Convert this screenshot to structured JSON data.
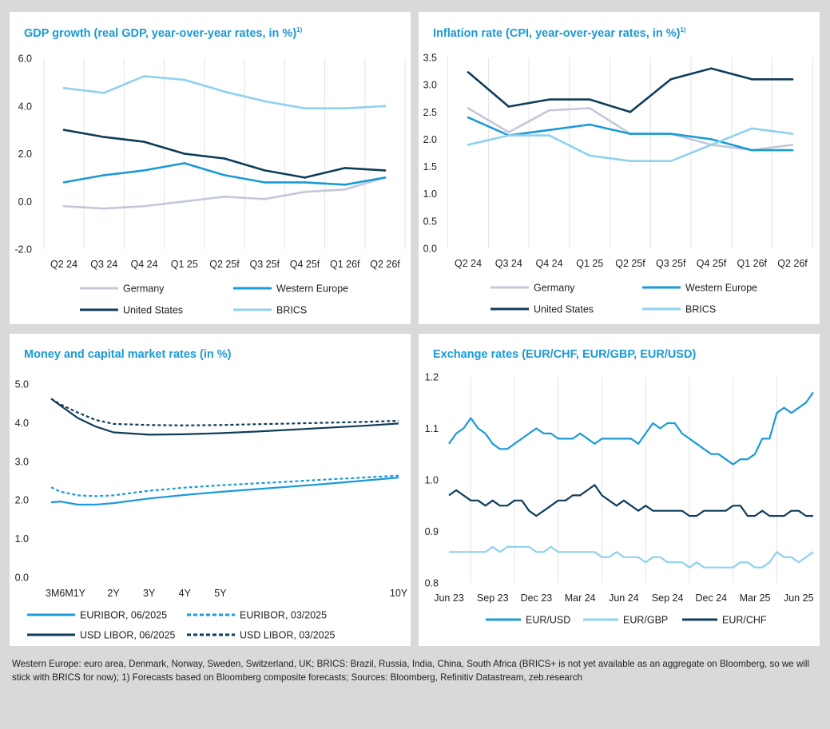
{
  "footnote": "Western Europe: euro area, Denmark, Norway, Sweden, Switzerland, UK; BRICS: Brazil, Russia, India, China, South Africa (BRICS+ is not yet available as an aggregate on Bloomberg, so we will stick with BRICS for now); 1) Forecasts based on Bloomberg composite forecasts; Sources: Bloomberg, Refinitiv Datastream, zeb.research",
  "colors": {
    "germany": "#c3c8d8",
    "western_europe": "#1a9ad6",
    "united_states": "#0e3d59",
    "brics": "#8fd1f0",
    "title": "#1a9ad6"
  },
  "chart_data": [
    {
      "id": "gdp",
      "type": "line",
      "title": "GDP growth (real GDP, year-over-year rates, in %)",
      "title_sup": "1)",
      "categories": [
        "Q2 24",
        "Q3 24",
        "Q4 24",
        "Q1 25",
        "Q2 25f",
        "Q3 25f",
        "Q4 25f",
        "Q1 26f",
        "Q2 26f"
      ],
      "ylim": [
        -2.0,
        6.0
      ],
      "yticks": [
        "-2.0",
        "0.0",
        "2.0",
        "4.0",
        "6.0"
      ],
      "grid": "vertical",
      "legend": "bottom",
      "series": [
        {
          "name": "Germany",
          "color": "#c3c8d8",
          "values": [
            -0.2,
            -0.3,
            -0.2,
            0.0,
            0.2,
            0.1,
            0.4,
            0.5,
            1.0
          ]
        },
        {
          "name": "Western Europe",
          "color": "#1a9ad6",
          "values": [
            0.8,
            1.1,
            1.3,
            1.6,
            1.1,
            0.8,
            0.8,
            0.7,
            1.0
          ]
        },
        {
          "name": "United States",
          "color": "#0e3d59",
          "values": [
            3.0,
            2.7,
            2.5,
            2.0,
            1.8,
            1.3,
            1.0,
            1.4,
            1.3
          ]
        },
        {
          "name": "BRICS",
          "color": "#8fd1f0",
          "values": [
            4.75,
            4.55,
            5.25,
            5.1,
            4.6,
            4.2,
            3.9,
            3.9,
            4.0
          ]
        }
      ]
    },
    {
      "id": "inflation",
      "type": "line",
      "title": "Inflation rate (CPI, year-over-year rates, in %)",
      "title_sup": "1)",
      "categories": [
        "Q2 24",
        "Q3 24",
        "Q4 24",
        "Q1 25",
        "Q2 25f",
        "Q3 25f",
        "Q4 25f",
        "Q1 26f",
        "Q2 26f"
      ],
      "ylim": [
        0.0,
        3.5
      ],
      "yticks": [
        "0.0",
        "0.5",
        "1.0",
        "1.5",
        "2.0",
        "2.5",
        "3.0",
        "3.5"
      ],
      "grid": "vertical",
      "legend": "bottom",
      "series": [
        {
          "name": "Germany",
          "color": "#c3c8d8",
          "values": [
            2.57,
            2.13,
            2.53,
            2.57,
            2.1,
            2.1,
            1.9,
            1.8,
            1.9
          ]
        },
        {
          "name": "Western Europe",
          "color": "#1a9ad6",
          "values": [
            2.4,
            2.07,
            2.17,
            2.27,
            2.1,
            2.1,
            2.0,
            1.8,
            1.8
          ]
        },
        {
          "name": "United States",
          "color": "#0e3d59",
          "values": [
            3.23,
            2.6,
            2.73,
            2.73,
            2.5,
            3.1,
            3.3,
            3.1,
            3.1
          ]
        },
        {
          "name": "BRICS",
          "color": "#8fd1f0",
          "values": [
            1.9,
            2.07,
            2.07,
            1.7,
            1.6,
            1.6,
            1.9,
            2.2,
            2.1
          ]
        }
      ]
    },
    {
      "id": "rates",
      "type": "line",
      "title": "Money and capital market rates (in %)",
      "x_domain": [
        0.25,
        10
      ],
      "x_ticks": [
        {
          "label": "3M6M1Y",
          "x": 0.25
        },
        {
          "label": "2Y",
          "x": 2
        },
        {
          "label": "3Y",
          "x": 3
        },
        {
          "label": "4Y",
          "x": 4
        },
        {
          "label": "5Y",
          "x": 5
        },
        {
          "label": "10Y",
          "x": 10
        }
      ],
      "ylim": [
        0.0,
        5.0
      ],
      "yticks": [
        "0.0",
        "1.0",
        "2.0",
        "3.0",
        "4.0",
        "5.0"
      ],
      "grid": "none",
      "legend": "bottom",
      "series": [
        {
          "name": "EURIBOR, 06/2025",
          "color": "#1a9ad6",
          "dashed": false,
          "x": [
            0.25,
            0.5,
            1,
            1.5,
            2,
            3,
            4,
            5,
            6,
            7,
            8,
            9,
            10
          ],
          "y": [
            1.94,
            1.96,
            1.88,
            1.88,
            1.92,
            2.04,
            2.13,
            2.21,
            2.28,
            2.35,
            2.42,
            2.5,
            2.58
          ]
        },
        {
          "name": "EURIBOR, 03/2025",
          "color": "#1a9ad6",
          "dashed": true,
          "x": [
            0.25,
            0.5,
            1,
            1.5,
            2,
            3,
            4,
            5,
            6,
            7,
            8,
            9,
            10
          ],
          "y": [
            2.33,
            2.22,
            2.12,
            2.1,
            2.12,
            2.24,
            2.32,
            2.38,
            2.43,
            2.48,
            2.53,
            2.58,
            2.63
          ]
        },
        {
          "name": "USD LIBOR, 06/2025",
          "color": "#0e3d59",
          "dashed": false,
          "x": [
            0.25,
            0.5,
            1,
            1.5,
            2,
            3,
            4,
            5,
            6,
            7,
            8,
            9,
            10
          ],
          "y": [
            4.62,
            4.45,
            4.12,
            3.9,
            3.75,
            3.69,
            3.7,
            3.73,
            3.77,
            3.82,
            3.87,
            3.92,
            3.98
          ]
        },
        {
          "name": "USD LIBOR, 03/2025",
          "color": "#0e3d59",
          "dashed": true,
          "x": [
            0.25,
            0.5,
            1,
            1.5,
            2,
            3,
            4,
            5,
            6,
            7,
            8,
            9,
            10
          ],
          "y": [
            4.62,
            4.48,
            4.26,
            4.07,
            3.97,
            3.94,
            3.93,
            3.94,
            3.96,
            3.98,
            4.0,
            4.02,
            4.05
          ]
        }
      ]
    },
    {
      "id": "fx",
      "type": "line",
      "title": "Exchange rates (EUR/CHF, EUR/GBP, EUR/USD)",
      "x_domain": [
        0,
        25
      ],
      "x_ticks": [
        {
          "label": "Jun 23",
          "x": 0
        },
        {
          "label": "Sep 23",
          "x": 3
        },
        {
          "label": "Dec 23",
          "x": 6
        },
        {
          "label": "Mar 24",
          "x": 9
        },
        {
          "label": "Jun 24",
          "x": 12
        },
        {
          "label": "Sep 24",
          "x": 15
        },
        {
          "label": "Dec 24",
          "x": 18
        },
        {
          "label": "Mar 25",
          "x": 21
        },
        {
          "label": "Jun 25",
          "x": 24
        }
      ],
      "ylim": [
        0.8,
        1.2
      ],
      "yticks": [
        "0.8",
        "0.9",
        "1.0",
        "1.1",
        "1.2"
      ],
      "grid": "vertical",
      "legend": "bottom",
      "series": [
        {
          "name": "EUR/USD",
          "color": "#1a9ad6",
          "x": [
            0,
            0.5,
            1,
            1.5,
            2,
            2.5,
            3,
            3.5,
            4,
            4.5,
            5,
            5.5,
            6,
            6.5,
            7,
            7.5,
            8,
            8.5,
            9,
            9.5,
            10,
            10.5,
            11,
            11.5,
            12,
            12.5,
            13,
            13.5,
            14,
            14.5,
            15,
            15.5,
            16,
            16.5,
            17,
            17.5,
            18,
            18.5,
            19,
            19.5,
            20,
            20.5,
            21,
            21.5,
            22,
            22.5,
            23,
            23.5,
            24,
            24.5,
            25
          ],
          "y": [
            1.07,
            1.09,
            1.1,
            1.12,
            1.1,
            1.09,
            1.07,
            1.06,
            1.06,
            1.07,
            1.08,
            1.09,
            1.1,
            1.09,
            1.09,
            1.08,
            1.08,
            1.08,
            1.09,
            1.08,
            1.07,
            1.08,
            1.08,
            1.08,
            1.08,
            1.08,
            1.07,
            1.09,
            1.11,
            1.1,
            1.11,
            1.11,
            1.09,
            1.08,
            1.07,
            1.06,
            1.05,
            1.05,
            1.04,
            1.03,
            1.04,
            1.04,
            1.05,
            1.08,
            1.08,
            1.13,
            1.14,
            1.13,
            1.14,
            1.15,
            1.17
          ]
        },
        {
          "name": "EUR/GBP",
          "color": "#8fd1f0",
          "x": [
            0,
            0.5,
            1,
            1.5,
            2,
            2.5,
            3,
            3.5,
            4,
            4.5,
            5,
            5.5,
            6,
            6.5,
            7,
            7.5,
            8,
            8.5,
            9,
            9.5,
            10,
            10.5,
            11,
            11.5,
            12,
            12.5,
            13,
            13.5,
            14,
            14.5,
            15,
            15.5,
            16,
            16.5,
            17,
            17.5,
            18,
            18.5,
            19,
            19.5,
            20,
            20.5,
            21,
            21.5,
            22,
            22.5,
            23,
            23.5,
            24,
            24.5,
            25
          ],
          "y": [
            0.86,
            0.86,
            0.86,
            0.86,
            0.86,
            0.86,
            0.87,
            0.86,
            0.87,
            0.87,
            0.87,
            0.87,
            0.86,
            0.86,
            0.87,
            0.86,
            0.86,
            0.86,
            0.86,
            0.86,
            0.86,
            0.85,
            0.85,
            0.86,
            0.85,
            0.85,
            0.85,
            0.84,
            0.85,
            0.85,
            0.84,
            0.84,
            0.84,
            0.83,
            0.84,
            0.83,
            0.83,
            0.83,
            0.83,
            0.83,
            0.84,
            0.84,
            0.83,
            0.83,
            0.84,
            0.86,
            0.85,
            0.85,
            0.84,
            0.85,
            0.86
          ]
        },
        {
          "name": "EUR/CHF",
          "color": "#0e3d59",
          "x": [
            0,
            0.5,
            1,
            1.5,
            2,
            2.5,
            3,
            3.5,
            4,
            4.5,
            5,
            5.5,
            6,
            6.5,
            7,
            7.5,
            8,
            8.5,
            9,
            9.5,
            10,
            10.5,
            11,
            11.5,
            12,
            12.5,
            13,
            13.5,
            14,
            14.5,
            15,
            15.5,
            16,
            16.5,
            17,
            17.5,
            18,
            18.5,
            19,
            19.5,
            20,
            20.5,
            21,
            21.5,
            22,
            22.5,
            23,
            23.5,
            24,
            24.5,
            25
          ],
          "y": [
            0.97,
            0.98,
            0.97,
            0.96,
            0.96,
            0.95,
            0.96,
            0.95,
            0.95,
            0.96,
            0.96,
            0.94,
            0.93,
            0.94,
            0.95,
            0.96,
            0.96,
            0.97,
            0.97,
            0.98,
            0.99,
            0.97,
            0.96,
            0.95,
            0.96,
            0.95,
            0.94,
            0.95,
            0.94,
            0.94,
            0.94,
            0.94,
            0.94,
            0.93,
            0.93,
            0.94,
            0.94,
            0.94,
            0.94,
            0.95,
            0.95,
            0.93,
            0.93,
            0.94,
            0.93,
            0.93,
            0.93,
            0.94,
            0.94,
            0.93,
            0.93
          ]
        }
      ]
    }
  ]
}
